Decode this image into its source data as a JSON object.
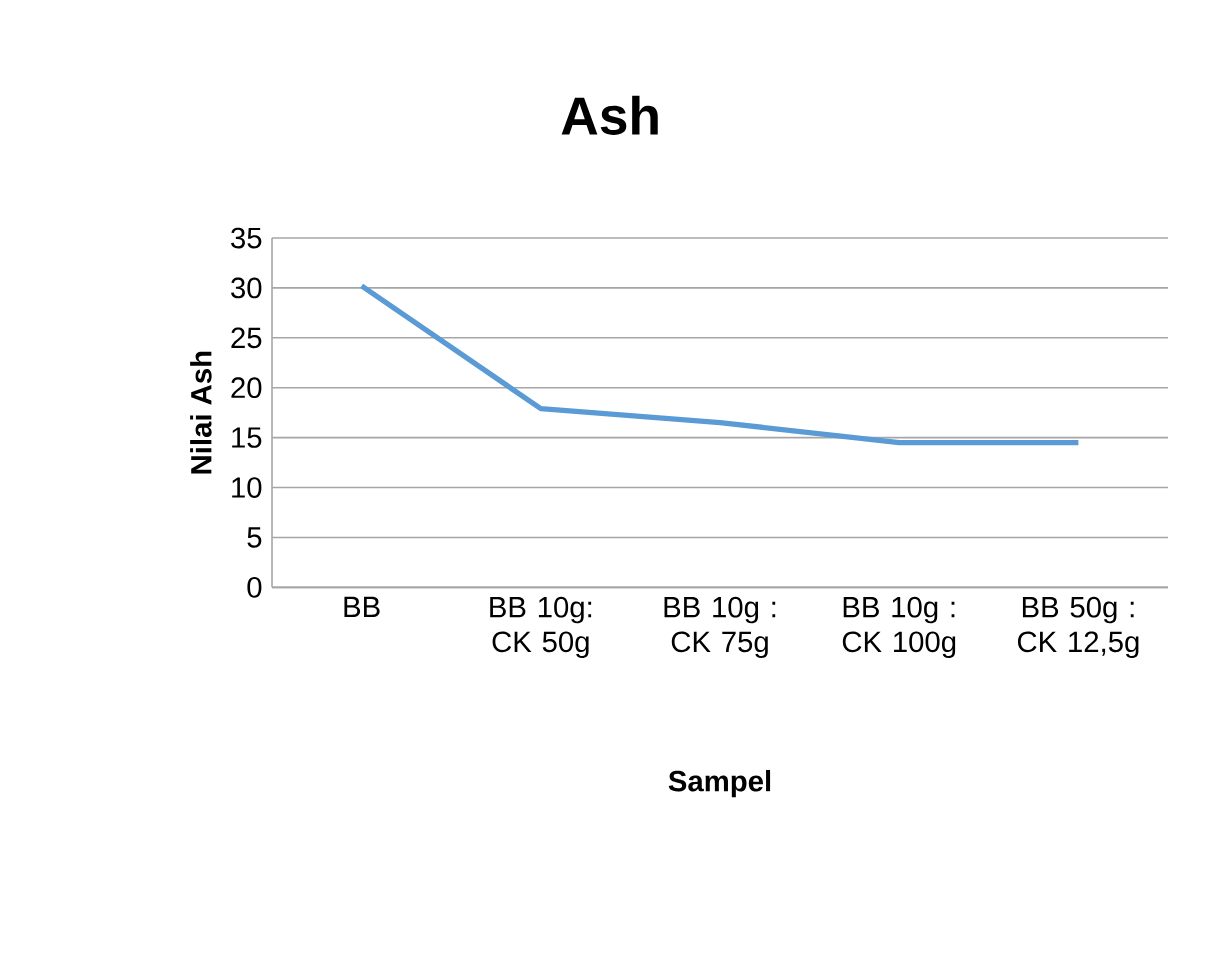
{
  "chart_data": {
    "type": "line",
    "title": "Ash",
    "xlabel": "Sampel",
    "ylabel": "Nilai Ash",
    "categories": [
      "BB",
      "BB 10g: CK 50g",
      "BB 10g : CK 75g",
      "BB 10g : CK 100g",
      "BB 50g : CK 12,5g"
    ],
    "series": [
      {
        "color": "#5b9bd5",
        "values": [
          30.2,
          17.9,
          16.5,
          14.5,
          14.5
        ]
      }
    ],
    "ylim": [
      0,
      35
    ],
    "yticks": [
      0,
      5,
      10,
      15,
      20,
      25,
      30,
      35
    ],
    "grid": "y",
    "marker": "none",
    "line_style": "solid"
  }
}
